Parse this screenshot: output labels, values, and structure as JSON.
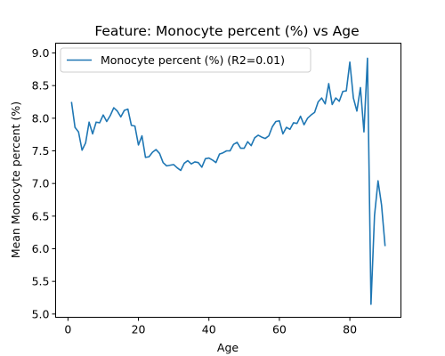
{
  "chart_data": {
    "type": "line",
    "title": "Feature: Monocyte percent (%) vs Age",
    "xlabel": "Age",
    "ylabel": "Mean Monocyte percent (%)",
    "xlim": [
      -3.5,
      94.5
    ],
    "ylim": [
      4.95,
      9.15
    ],
    "xticks": [
      0,
      20,
      40,
      60,
      80
    ],
    "yticks": [
      5.0,
      5.5,
      6.0,
      6.5,
      7.0,
      7.5,
      8.0,
      8.5,
      9.0
    ],
    "yticks_labels": [
      "5.0",
      "5.5",
      "6.0",
      "6.5",
      "7.0",
      "7.5",
      "8.0",
      "8.5",
      "9.0"
    ],
    "grid": false,
    "legend_position": "top-left",
    "series": [
      {
        "name": "Monocyte percent (%) (R2=0.01)",
        "color": "#1f77b4",
        "x": [
          1,
          2,
          3,
          4,
          5,
          6,
          7,
          8,
          9,
          10,
          11,
          12,
          13,
          14,
          15,
          16,
          17,
          18,
          19,
          20,
          21,
          22,
          23,
          24,
          25,
          26,
          27,
          28,
          29,
          30,
          31,
          32,
          33,
          34,
          35,
          36,
          37,
          38,
          39,
          40,
          41,
          42,
          43,
          44,
          45,
          46,
          47,
          48,
          49,
          50,
          51,
          52,
          53,
          54,
          55,
          56,
          57,
          58,
          59,
          60,
          61,
          62,
          63,
          64,
          65,
          66,
          67,
          68,
          69,
          70,
          71,
          72,
          73,
          74,
          75,
          76,
          77,
          78,
          79,
          80,
          81,
          82,
          83,
          84,
          85,
          86,
          87,
          88,
          89,
          90
        ],
        "y": [
          8.25,
          7.86,
          7.79,
          7.51,
          7.62,
          7.94,
          7.76,
          7.94,
          7.93,
          8.05,
          7.95,
          8.04,
          8.16,
          8.11,
          8.02,
          8.12,
          8.14,
          7.89,
          7.88,
          7.59,
          7.73,
          7.4,
          7.41,
          7.48,
          7.52,
          7.46,
          7.32,
          7.27,
          7.28,
          7.29,
          7.24,
          7.2,
          7.31,
          7.35,
          7.3,
          7.33,
          7.32,
          7.25,
          7.38,
          7.39,
          7.36,
          7.32,
          7.45,
          7.47,
          7.5,
          7.5,
          7.6,
          7.63,
          7.54,
          7.54,
          7.64,
          7.58,
          7.7,
          7.74,
          7.71,
          7.69,
          7.73,
          7.87,
          7.95,
          7.96,
          7.76,
          7.86,
          7.83,
          7.93,
          7.92,
          8.03,
          7.9,
          8.0,
          8.05,
          8.09,
          8.25,
          8.31,
          8.22,
          8.53,
          8.21,
          8.31,
          8.26,
          8.41,
          8.42,
          8.86,
          8.31,
          8.11,
          8.47,
          7.79,
          8.92,
          5.15,
          6.51,
          7.04,
          6.67,
          6.04
        ]
      }
    ]
  }
}
